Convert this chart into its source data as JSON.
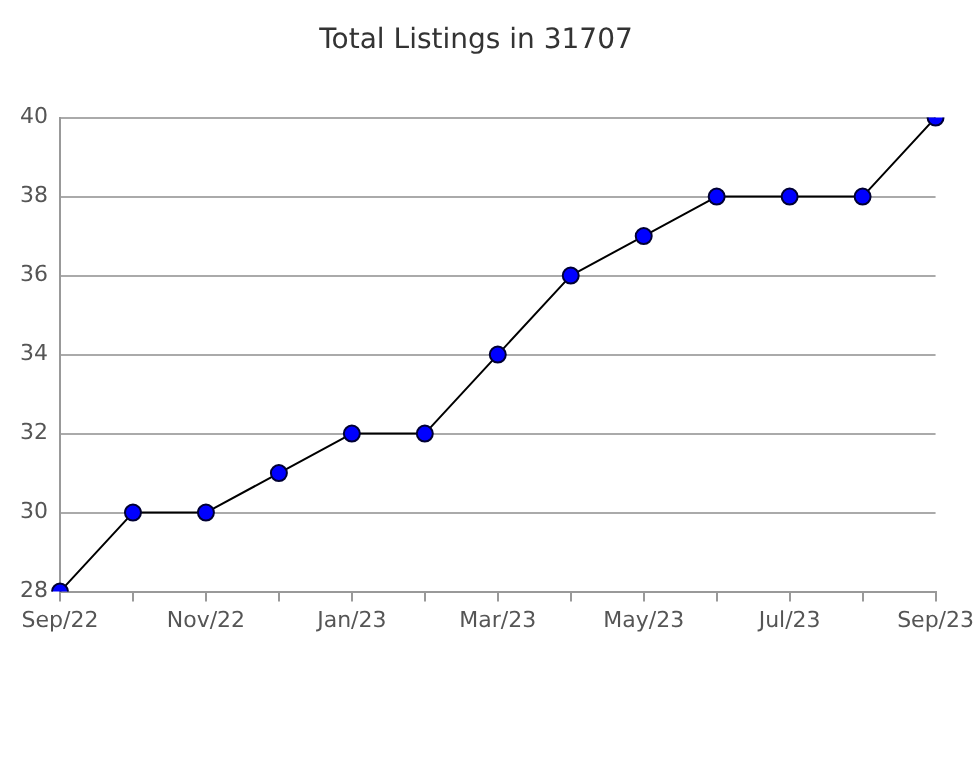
{
  "chart_data": {
    "type": "line",
    "title": "Total Listings in 31707",
    "categories": [
      "Sep/22",
      null,
      "Nov/22",
      null,
      "Jan/23",
      null,
      "Mar/23",
      null,
      "May/23",
      null,
      "Jul/23",
      null,
      "Sep/23"
    ],
    "series": [
      {
        "color": "#0000ff",
        "values": [
          28,
          30,
          30,
          31,
          32,
          32,
          34,
          36,
          37,
          38,
          38,
          38,
          40
        ]
      }
    ],
    "ylim": [
      28,
      40
    ],
    "yticks": [
      28,
      30,
      32,
      34,
      36,
      38,
      40
    ],
    "grid": "y",
    "legend": false,
    "marker": "circle",
    "line_style": "solid"
  }
}
